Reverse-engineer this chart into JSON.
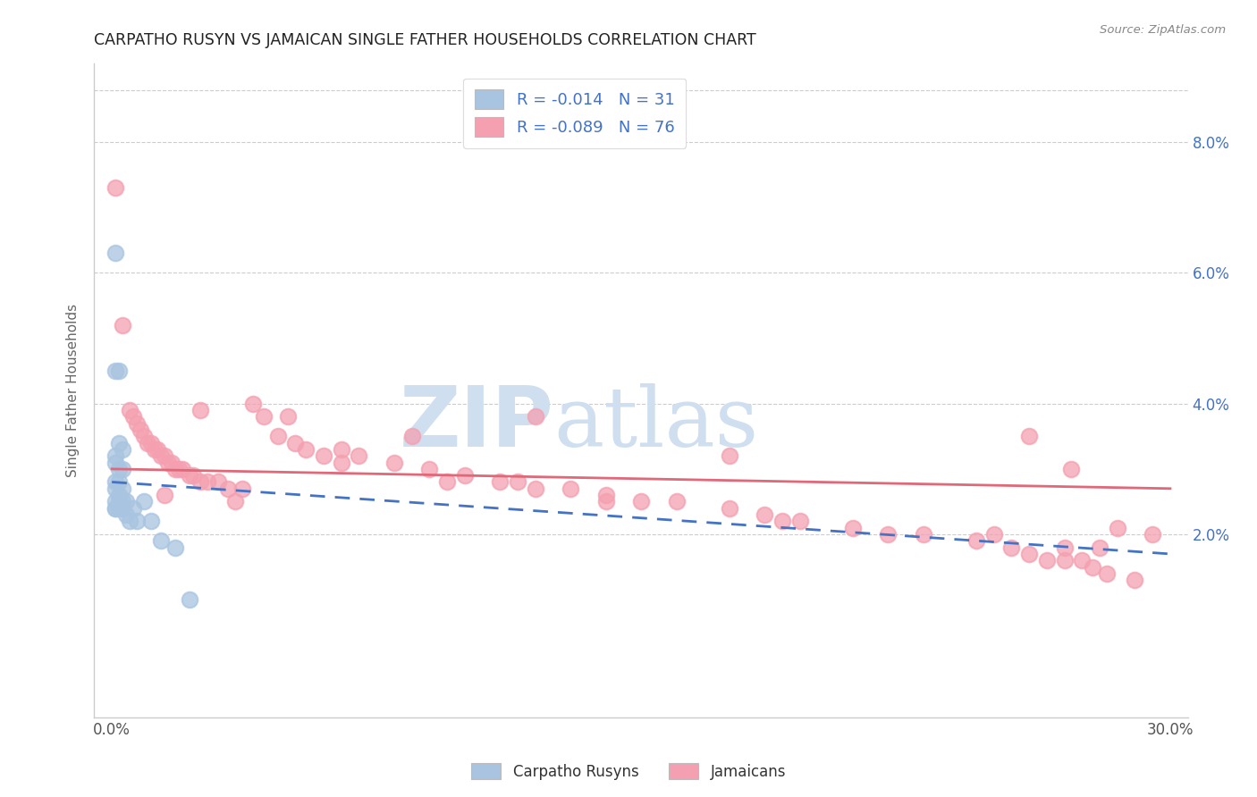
{
  "title": "CARPATHO RUSYN VS JAMAICAN SINGLE FATHER HOUSEHOLDS CORRELATION CHART",
  "source": "Source: ZipAtlas.com",
  "ylabel": "Single Father Households",
  "legend_label_blue": "Carpatho Rusyns",
  "legend_label_pink": "Jamaicans",
  "blue_scatter_color": "#a8c4e0",
  "pink_scatter_color": "#f4a0b0",
  "blue_line_color": "#4472c4",
  "pink_line_color": "#e06878",
  "legend_text_color": "#4472c4",
  "watermark_zip_color": "#cfdff0",
  "watermark_atlas_color": "#cfdff0",
  "grid_color": "#cccccc",
  "title_color": "#222222",
  "source_color": "#888888",
  "blue_r": "-0.014",
  "blue_n": "31",
  "pink_r": "-0.089",
  "pink_n": "76",
  "xlim_min": 0.0,
  "xlim_max": 0.3,
  "ylim_min": -0.008,
  "ylim_max": 0.092,
  "yticks": [
    0.02,
    0.04,
    0.06,
    0.08
  ],
  "ytick_labels": [
    "2.0%",
    "4.0%",
    "6.0%",
    "8.0%"
  ],
  "xtick_labels": [
    "0.0%",
    "30.0%"
  ],
  "xtick_values": [
    0.0,
    0.3
  ],
  "blue_x": [
    0.001,
    0.001,
    0.001,
    0.001,
    0.001,
    0.001,
    0.001,
    0.001,
    0.001,
    0.002,
    0.002,
    0.002,
    0.002,
    0.002,
    0.002,
    0.002,
    0.003,
    0.003,
    0.003,
    0.003,
    0.003,
    0.004,
    0.004,
    0.005,
    0.006,
    0.007,
    0.009,
    0.011,
    0.014,
    0.018,
    0.022
  ],
  "blue_y": [
    0.063,
    0.045,
    0.032,
    0.031,
    0.028,
    0.027,
    0.025,
    0.024,
    0.024,
    0.045,
    0.034,
    0.03,
    0.028,
    0.026,
    0.025,
    0.024,
    0.033,
    0.03,
    0.027,
    0.025,
    0.024,
    0.025,
    0.023,
    0.022,
    0.024,
    0.022,
    0.025,
    0.022,
    0.019,
    0.018,
    0.01
  ],
  "pink_x": [
    0.001,
    0.003,
    0.005,
    0.006,
    0.007,
    0.008,
    0.009,
    0.01,
    0.011,
    0.012,
    0.013,
    0.014,
    0.015,
    0.016,
    0.017,
    0.018,
    0.019,
    0.02,
    0.022,
    0.023,
    0.025,
    0.027,
    0.03,
    0.033,
    0.037,
    0.04,
    0.043,
    0.047,
    0.052,
    0.055,
    0.06,
    0.065,
    0.07,
    0.08,
    0.09,
    0.1,
    0.11,
    0.115,
    0.12,
    0.13,
    0.14,
    0.15,
    0.16,
    0.175,
    0.185,
    0.195,
    0.21,
    0.22,
    0.23,
    0.245,
    0.255,
    0.26,
    0.265,
    0.27,
    0.272,
    0.275,
    0.278,
    0.282,
    0.285,
    0.29,
    0.025,
    0.05,
    0.085,
    0.12,
    0.175,
    0.25,
    0.27,
    0.28,
    0.26,
    0.295,
    0.015,
    0.035,
    0.065,
    0.095,
    0.14,
    0.19
  ],
  "pink_y": [
    0.073,
    0.052,
    0.039,
    0.038,
    0.037,
    0.036,
    0.035,
    0.034,
    0.034,
    0.033,
    0.033,
    0.032,
    0.032,
    0.031,
    0.031,
    0.03,
    0.03,
    0.03,
    0.029,
    0.029,
    0.028,
    0.028,
    0.028,
    0.027,
    0.027,
    0.04,
    0.038,
    0.035,
    0.034,
    0.033,
    0.032,
    0.031,
    0.032,
    0.031,
    0.03,
    0.029,
    0.028,
    0.028,
    0.027,
    0.027,
    0.026,
    0.025,
    0.025,
    0.024,
    0.023,
    0.022,
    0.021,
    0.02,
    0.02,
    0.019,
    0.018,
    0.017,
    0.016,
    0.016,
    0.03,
    0.016,
    0.015,
    0.014,
    0.021,
    0.013,
    0.039,
    0.038,
    0.035,
    0.038,
    0.032,
    0.02,
    0.018,
    0.018,
    0.035,
    0.02,
    0.026,
    0.025,
    0.033,
    0.028,
    0.025,
    0.022
  ],
  "blue_line_x0": 0.0,
  "blue_line_x1": 0.3,
  "blue_line_y0": 0.028,
  "blue_line_y1": 0.017,
  "pink_line_x0": 0.0,
  "pink_line_x1": 0.3,
  "pink_line_y0": 0.03,
  "pink_line_y1": 0.027
}
